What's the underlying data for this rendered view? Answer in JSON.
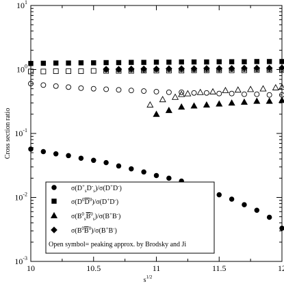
{
  "chart_data": {
    "type": "scatter",
    "title": "",
    "xlabel": "s",
    "xlabel_sup": "1/2",
    "ylabel": "Cross section ratio",
    "xlim": [
      10,
      12
    ],
    "ylim": [
      0.001,
      10
    ],
    "y_scale": "log",
    "grid": false,
    "legend_position": "bottom-left",
    "x_ticks": [
      {
        "value": 10,
        "label": "10"
      },
      {
        "value": 10.5,
        "label": "10.5"
      },
      {
        "value": 11,
        "label": "11"
      },
      {
        "value": 11.5,
        "label": "11.5"
      },
      {
        "value": 12,
        "label": "12"
      }
    ],
    "y_ticks": [
      {
        "value": 0.001,
        "base": "10",
        "exp": "-3"
      },
      {
        "value": 0.01,
        "base": "10",
        "exp": "-2"
      },
      {
        "value": 0.1,
        "base": "10",
        "exp": "-1"
      },
      {
        "value": 1,
        "base": "10",
        "exp": "0"
      },
      {
        "value": 10,
        "base": "10",
        "exp": "1"
      }
    ],
    "legend_entries": [
      {
        "marker": "circle",
        "parts": [
          [
            "σ(D",
            ""
          ],
          [
            "+",
            "sup"
          ],
          [
            "s",
            "sub"
          ],
          [
            "D",
            ""
          ],
          [
            "-",
            "sup"
          ],
          [
            "s",
            "sub"
          ],
          [
            ")/σ(D",
            ""
          ],
          [
            "+",
            "sup"
          ],
          [
            "D",
            ""
          ],
          [
            "-",
            "sup"
          ],
          [
            ")",
            ""
          ]
        ]
      },
      {
        "marker": "square",
        "parts": [
          [
            "σ(D",
            ""
          ],
          [
            "0",
            "sup"
          ],
          [
            "D",
            "over"
          ],
          [
            "0",
            "sup"
          ],
          [
            ")/σ(D",
            ""
          ],
          [
            "+",
            "sup"
          ],
          [
            "D",
            ""
          ],
          [
            "-",
            "sup"
          ],
          [
            ")",
            ""
          ]
        ]
      },
      {
        "marker": "triangle",
        "parts": [
          [
            "σ(B",
            ""
          ],
          [
            "0",
            "sup"
          ],
          [
            "s",
            "sub"
          ],
          [
            "B",
            "over"
          ],
          [
            "0",
            "sup"
          ],
          [
            "s",
            "sub"
          ],
          [
            ")/σ(B",
            ""
          ],
          [
            "+",
            "sup"
          ],
          [
            "B",
            ""
          ],
          [
            "-",
            "sup"
          ],
          [
            ")",
            ""
          ]
        ]
      },
      {
        "marker": "diamond",
        "parts": [
          [
            "σ(B",
            ""
          ],
          [
            "0",
            "sup"
          ],
          [
            "B",
            "over"
          ],
          [
            "0",
            "sup"
          ],
          [
            ")/σ(B",
            ""
          ],
          [
            "+",
            "sup"
          ],
          [
            "B",
            ""
          ],
          [
            "-",
            "sup"
          ],
          [
            ")",
            ""
          ]
        ]
      }
    ],
    "legend_note": "Open symbol= peaking approx. by Brodsky and Ji",
    "series": [
      {
        "marker": "circle",
        "filled": true,
        "x": [
          10.0,
          10.1,
          10.2,
          10.3,
          10.4,
          10.5,
          10.6,
          10.7,
          10.8,
          10.9,
          11.0,
          11.1,
          11.2,
          11.3,
          11.4,
          11.5,
          11.6,
          11.7,
          11.8,
          11.9,
          12.0
        ],
        "y": [
          0.057,
          0.052,
          0.048,
          0.045,
          0.041,
          0.038,
          0.035,
          0.031,
          0.028,
          0.025,
          0.022,
          0.02,
          0.018,
          0.016,
          0.013,
          0.011,
          0.0094,
          0.0077,
          0.0063,
          0.0049,
          0.0033
        ]
      },
      {
        "marker": "square",
        "filled": true,
        "x": [
          10.0,
          10.1,
          10.2,
          10.3,
          10.4,
          10.5,
          10.6,
          10.7,
          10.8,
          10.9,
          11.0,
          11.1,
          11.2,
          11.3,
          11.4,
          11.5,
          11.6,
          11.7,
          11.8,
          11.9,
          12.0
        ],
        "y": [
          1.24,
          1.25,
          1.26,
          1.26,
          1.27,
          1.27,
          1.28,
          1.28,
          1.29,
          1.29,
          1.3,
          1.3,
          1.31,
          1.31,
          1.31,
          1.32,
          1.32,
          1.32,
          1.33,
          1.33,
          1.33
        ]
      },
      {
        "marker": "square",
        "filled": false,
        "x": [
          10.0,
          10.1,
          10.2,
          10.3,
          10.4,
          10.5,
          10.6,
          10.7,
          10.8,
          10.9,
          11.0,
          11.1,
          11.2,
          11.3,
          11.4,
          11.5,
          11.6,
          11.7,
          11.8,
          11.9,
          12.0
        ],
        "y": [
          0.93,
          0.93,
          0.94,
          0.94,
          0.94,
          0.95,
          0.95,
          0.95,
          0.95,
          0.96,
          0.96,
          0.96,
          0.96,
          0.97,
          0.97,
          0.97,
          0.97,
          0.97,
          0.98,
          0.98,
          0.98
        ]
      },
      {
        "marker": "circle",
        "filled": false,
        "x": [
          10.0,
          10.1,
          10.2,
          10.3,
          10.4,
          10.5,
          10.6,
          10.7,
          10.8,
          10.9,
          11.0,
          11.1,
          11.2,
          11.3,
          11.4,
          11.5,
          11.6,
          11.7,
          11.8,
          11.9,
          12.0
        ],
        "y": [
          0.6,
          0.57,
          0.55,
          0.53,
          0.51,
          0.5,
          0.49,
          0.48,
          0.47,
          0.46,
          0.45,
          0.44,
          0.44,
          0.43,
          0.43,
          0.42,
          0.42,
          0.41,
          0.41,
          0.4,
          0.4
        ]
      },
      {
        "marker": "diamond",
        "filled": true,
        "x": [
          10.6,
          10.7,
          10.8,
          10.9,
          11.0,
          11.1,
          11.2,
          11.3,
          11.4,
          11.5,
          11.6,
          11.7,
          11.8,
          11.9,
          12.0
        ],
        "y": [
          1.01,
          1.01,
          1.02,
          1.02,
          1.02,
          1.03,
          1.03,
          1.03,
          1.04,
          1.04,
          1.04,
          1.05,
          1.05,
          1.05,
          1.06
        ]
      },
      {
        "marker": "circle",
        "filled": false,
        "x": [
          10.6,
          10.7,
          10.8,
          10.9,
          11.0,
          11.1,
          11.2,
          11.3,
          11.4,
          11.5,
          11.6,
          11.7,
          11.8,
          11.9,
          12.0
        ],
        "y": [
          0.99,
          0.99,
          0.99,
          0.99,
          1.0,
          1.0,
          1.0,
          1.0,
          1.0,
          1.0,
          1.01,
          1.01,
          1.01,
          1.01,
          1.01
        ]
      },
      {
        "marker": "triangle",
        "filled": true,
        "x": [
          11.0,
          11.1,
          11.2,
          11.3,
          11.4,
          11.5,
          11.6,
          11.7,
          11.8,
          11.9,
          12.0
        ],
        "y": [
          0.2,
          0.23,
          0.26,
          0.27,
          0.28,
          0.29,
          0.3,
          0.31,
          0.32,
          0.32,
          0.33
        ]
      },
      {
        "marker": "triangle",
        "filled": false,
        "x": [
          10.95,
          11.05,
          11.15,
          11.2,
          11.25,
          11.35,
          11.45,
          11.55,
          11.65,
          11.75,
          11.85,
          11.95,
          12.0
        ],
        "y": [
          0.28,
          0.34,
          0.37,
          0.41,
          0.42,
          0.44,
          0.45,
          0.47,
          0.48,
          0.49,
          0.5,
          0.52,
          0.53
        ]
      }
    ]
  }
}
